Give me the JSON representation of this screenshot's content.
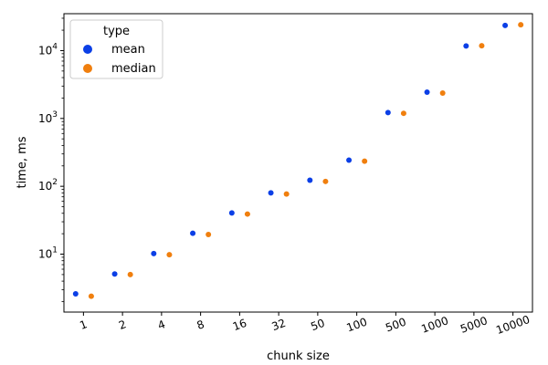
{
  "chart_data": {
    "type": "scatter",
    "title": "",
    "xlabel": "chunk size",
    "ylabel": "time, ms",
    "categories": [
      "1",
      "2",
      "4",
      "8",
      "16",
      "32",
      "50",
      "100",
      "500",
      "1000",
      "5000",
      "10000"
    ],
    "yscale": "log",
    "ylim": [
      1.4,
      35000
    ],
    "y_ticks": [
      {
        "value": 10,
        "base": "10",
        "exp": "1"
      },
      {
        "value": 100,
        "base": "10",
        "exp": "2"
      },
      {
        "value": 1000,
        "base": "10",
        "exp": "3"
      },
      {
        "value": 10000,
        "base": "10",
        "exp": "4"
      }
    ],
    "grid": false,
    "legend": {
      "title": "type",
      "placement": "top-left"
    },
    "series": [
      {
        "name": "mean",
        "color": "#0b3fe6",
        "values": [
          2.6,
          5.1,
          10.2,
          20.3,
          40.5,
          80,
          123,
          243,
          1220,
          2440,
          11700,
          23500
        ]
      },
      {
        "name": "median",
        "color": "#f07f0e",
        "values": [
          2.4,
          5.0,
          9.8,
          19.5,
          39,
          77,
          118,
          235,
          1190,
          2370,
          11800,
          24000
        ]
      }
    ]
  }
}
